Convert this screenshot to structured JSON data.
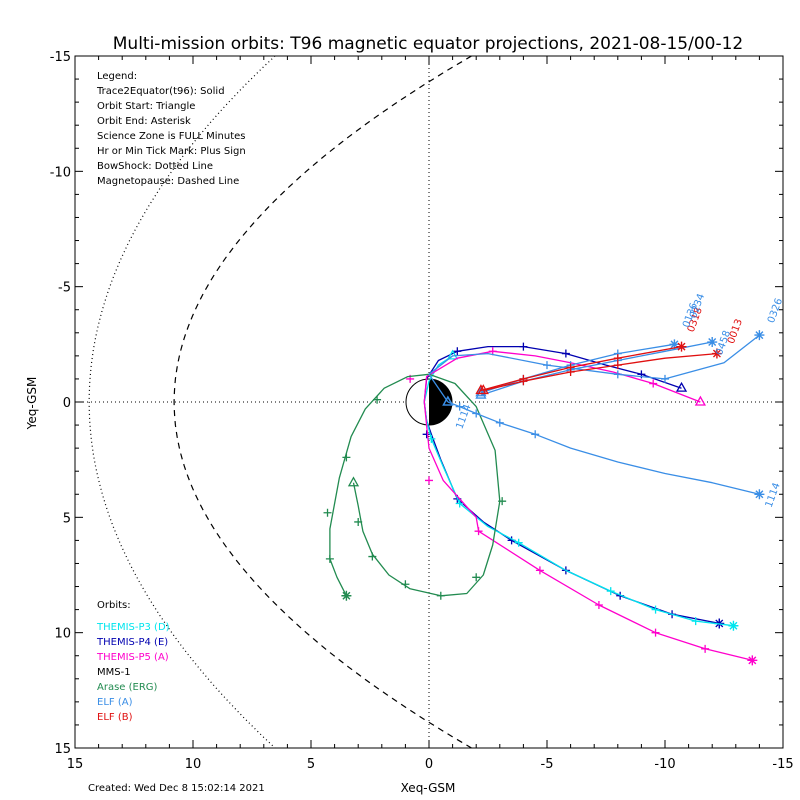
{
  "chart_data": {
    "type": "line",
    "title": "Multi-mission orbits: T96 magnetic equator projections, 2021-08-15/00-12",
    "xlabel": "Xeq-GSM",
    "ylabel": "Yeq-GSM",
    "xlim": [
      15,
      -15
    ],
    "ylim": [
      -15,
      15
    ],
    "xticks": [
      "15",
      "10",
      "5",
      "0",
      "-5",
      "-10",
      "-15"
    ],
    "yticks": [
      "-15",
      "-10",
      "-5",
      "0",
      "5",
      "10",
      "15"
    ],
    "grid": false,
    "legend_text": [
      "Legend:",
      "Trace2Equator(t96): Solid",
      "Orbit Start: Triangle",
      "Orbit End: Asterisk",
      "Science Zone is FULL Minutes",
      "Hr or Min Tick Mark: Plus Sign",
      "BowShock: Dotted Line",
      "Magnetopause: Dashed Line"
    ],
    "orbits_label": "Orbits:",
    "orbits": [
      {
        "name": "THEMIS-P3 (D)",
        "color": "#00e5ee"
      },
      {
        "name": "THEMIS-P4 (E)",
        "color": "#0000b0"
      },
      {
        "name": "THEMIS-P5 (A)",
        "color": "#ff00cc"
      },
      {
        "name": "MMS-1",
        "color": "#000000"
      },
      {
        "name": "Arase (ERG)",
        "color": "#228b50"
      },
      {
        "name": "ELF (A)",
        "color": "#3a8ee6"
      },
      {
        "name": "ELF (B)",
        "color": "#e01010"
      }
    ],
    "series": [
      {
        "name": "THEMIS-P4 (E)",
        "color": "#0000b0",
        "points": [
          [
            -10.7,
            -0.6
          ],
          [
            -9,
            -1.2
          ],
          [
            -7.5,
            -1.6
          ],
          [
            -5.8,
            -2.1
          ],
          [
            -4,
            -2.4
          ],
          [
            -2.5,
            -2.4
          ],
          [
            -1.2,
            -2.2
          ],
          [
            -0.4,
            -1.8
          ],
          [
            0.1,
            -1.0
          ],
          [
            0.2,
            0.0
          ],
          [
            0.1,
            0.8
          ],
          [
            -0.1,
            1.4
          ],
          [
            -0.5,
            2.5
          ],
          [
            -1.2,
            4.2
          ],
          [
            -2.3,
            5.2
          ],
          [
            -3.5,
            6.0
          ],
          [
            -5.8,
            7.3
          ],
          [
            -8.1,
            8.4
          ],
          [
            -10.3,
            9.2
          ],
          [
            -12.3,
            9.6
          ]
        ],
        "ticks": [
          [
            -9,
            -1.2
          ],
          [
            -5.8,
            -2.1
          ],
          [
            -4,
            -2.4
          ],
          [
            -1.2,
            -2.2
          ],
          [
            0.1,
            1.4
          ],
          [
            -1.2,
            4.2
          ],
          [
            -3.5,
            6.0
          ],
          [
            -5.8,
            7.3
          ],
          [
            -8.1,
            8.4
          ],
          [
            -10.3,
            9.2
          ]
        ]
      },
      {
        "name": "THEMIS-P3 (D)",
        "color": "#00e5ee",
        "points": [
          [
            -1.0,
            -2.0
          ],
          [
            -0.4,
            -1.6
          ],
          [
            0.0,
            -0.9
          ],
          [
            0.2,
            0.0
          ],
          [
            0.1,
            0.8
          ],
          [
            -0.1,
            1.6
          ],
          [
            -0.6,
            2.8
          ],
          [
            -1.3,
            4.4
          ],
          [
            -2.5,
            5.4
          ],
          [
            -3.8,
            6.1
          ],
          [
            -5.8,
            7.3
          ],
          [
            -7.7,
            8.2
          ],
          [
            -9.6,
            9.0
          ],
          [
            -11.3,
            9.5
          ],
          [
            -12.9,
            9.7
          ]
        ],
        "ticks": [
          [
            -0.1,
            1.6
          ],
          [
            -1.3,
            4.4
          ],
          [
            -3.8,
            6.1
          ],
          [
            -7.7,
            8.2
          ],
          [
            -9.6,
            9.0
          ],
          [
            -11.3,
            9.5
          ]
        ]
      },
      {
        "name": "THEMIS-P5 (A)",
        "color": "#ff00cc",
        "points": [
          [
            -11.5,
            0.0
          ],
          [
            -9.5,
            -0.8
          ],
          [
            -7.8,
            -1.3
          ],
          [
            -6,
            -1.7
          ],
          [
            -4.5,
            -2.0
          ],
          [
            -2.7,
            -2.2
          ],
          [
            -1.2,
            -1.9
          ],
          [
            0.1,
            -1.1
          ],
          [
            0.2,
            0.0
          ],
          [
            0.1,
            1.0
          ],
          [
            0.0,
            2.0
          ],
          [
            -0.6,
            3.4
          ],
          [
            -2.0,
            5.0
          ],
          [
            -2.1,
            5.6
          ],
          [
            -4.7,
            7.3
          ],
          [
            -7.2,
            8.8
          ],
          [
            -9.6,
            10.0
          ],
          [
            -11.7,
            10.7
          ],
          [
            -13.7,
            11.2
          ]
        ],
        "ticks": [
          [
            -9.5,
            -0.8
          ],
          [
            -2.7,
            -2.2
          ],
          [
            0.8,
            -1.0
          ],
          [
            0.0,
            3.4
          ],
          [
            -2.1,
            5.6
          ],
          [
            -4.7,
            7.3
          ],
          [
            -7.2,
            8.8
          ],
          [
            -9.6,
            10.0
          ],
          [
            -11.7,
            10.7
          ]
        ]
      },
      {
        "name": "Arase (ERG)",
        "color": "#228b50",
        "points": [
          [
            3.2,
            3.5
          ],
          [
            3.0,
            4.5
          ],
          [
            2.8,
            5.6
          ],
          [
            2.4,
            6.6
          ],
          [
            1.7,
            7.5
          ],
          [
            0.8,
            8.1
          ],
          [
            -0.5,
            8.4
          ],
          [
            -1.6,
            8.3
          ],
          [
            -2.3,
            7.5
          ],
          [
            -2.7,
            6.2
          ],
          [
            -3.0,
            4.3
          ],
          [
            -2.8,
            2.1
          ],
          [
            -2.0,
            0.2
          ],
          [
            -1.1,
            -0.8
          ],
          [
            0.0,
            -1.2
          ],
          [
            0.9,
            -1.1
          ],
          [
            1.9,
            -0.6
          ],
          [
            2.7,
            0.3
          ],
          [
            3.3,
            1.5
          ],
          [
            3.8,
            3.3
          ],
          [
            4.2,
            5.5
          ],
          [
            4.2,
            6.8
          ],
          [
            3.9,
            7.6
          ],
          [
            3.5,
            8.4
          ]
        ],
        "ticks": [
          [
            3.0,
            5.2
          ],
          [
            2.4,
            6.7
          ],
          [
            1.0,
            7.9
          ],
          [
            -0.5,
            8.4
          ],
          [
            -2.0,
            7.6
          ],
          [
            -3.1,
            4.3
          ],
          [
            2.2,
            -0.1
          ],
          [
            3.5,
            2.4
          ],
          [
            4.3,
            4.8
          ],
          [
            4.2,
            6.8
          ]
        ]
      },
      {
        "name": "ELF (A) 1114",
        "color": "#3a8ee6",
        "points": [
          [
            -0.8,
            0.0
          ],
          [
            -1.3,
            0.2
          ],
          [
            -2.0,
            0.5
          ],
          [
            -3,
            0.9
          ],
          [
            -4.5,
            1.4
          ],
          [
            -6,
            2.0
          ],
          [
            -8,
            2.6
          ],
          [
            -10,
            3.1
          ],
          [
            -12,
            3.5
          ],
          [
            -14,
            4.0
          ]
        ],
        "ticks": [
          [
            -1.3,
            0.2
          ],
          [
            -2.0,
            0.5
          ],
          [
            -3,
            0.9
          ],
          [
            -4.5,
            1.4
          ]
        ]
      },
      {
        "name": "ELF (A) 0326",
        "color": "#3a8ee6",
        "points": [
          [
            -0.8,
            0.0
          ],
          [
            0.0,
            -1.2
          ],
          [
            -1.0,
            -2.0
          ],
          [
            -2.5,
            -2.1
          ],
          [
            -5,
            -1.6
          ],
          [
            -8,
            -1.2
          ],
          [
            -10,
            -1.0
          ],
          [
            -12.5,
            -1.7
          ],
          [
            -14,
            -2.9
          ]
        ],
        "ticks": [
          [
            -5,
            -1.6
          ],
          [
            -8,
            -1.2
          ],
          [
            -10,
            -1.0
          ]
        ]
      },
      {
        "name": "ELF (A) 0458",
        "color": "#3a8ee6",
        "points": [
          [
            -2.2,
            -0.3
          ],
          [
            -4,
            -0.9
          ],
          [
            -6,
            -1.4
          ],
          [
            -8,
            -1.8
          ],
          [
            -10,
            -2.2
          ],
          [
            -12,
            -2.6
          ]
        ],
        "ticks": [
          [
            -4,
            -0.9
          ],
          [
            -6,
            -1.4
          ],
          [
            -8,
            -1.8
          ]
        ]
      },
      {
        "name": "ELF (A) 0136",
        "color": "#3a8ee6",
        "points": [
          [
            -2.2,
            -0.4
          ],
          [
            -4,
            -1.0
          ],
          [
            -6,
            -1.6
          ],
          [
            -8,
            -2.1
          ],
          [
            -10.4,
            -2.5
          ]
        ],
        "ticks": [
          [
            -4,
            -1.0
          ],
          [
            -6,
            -1.6
          ],
          [
            -8,
            -2.1
          ]
        ]
      },
      {
        "name": "ELF (B) 0318",
        "color": "#e01010",
        "points": [
          [
            -2.2,
            -0.5
          ],
          [
            -4,
            -1.0
          ],
          [
            -6,
            -1.5
          ],
          [
            -8,
            -1.9
          ],
          [
            -10.7,
            -2.4
          ]
        ],
        "ticks": [
          [
            -4,
            -1.0
          ],
          [
            -6,
            -1.5
          ],
          [
            -8,
            -1.9
          ]
        ]
      },
      {
        "name": "ELF (B) 0013",
        "color": "#e01010",
        "points": [
          [
            -2.3,
            -0.5
          ],
          [
            -4,
            -0.9
          ],
          [
            -6,
            -1.3
          ],
          [
            -8,
            -1.6
          ],
          [
            -10,
            -1.9
          ],
          [
            -12.2,
            -2.1
          ]
        ],
        "ticks": [
          [
            -4,
            -0.9
          ],
          [
            -6,
            -1.3
          ],
          [
            -8,
            -1.6
          ]
        ]
      }
    ],
    "labels": [
      {
        "text": "0326",
        "color": "#3a8ee6",
        "x": -14.6,
        "y": -3.4
      },
      {
        "text": "1114",
        "color": "#3a8ee6",
        "x": -14.5,
        "y": 4.6
      },
      {
        "text": "0458",
        "color": "#3a8ee6",
        "x": -12.4,
        "y": -2.0
      },
      {
        "text": "0013",
        "color": "#e01010",
        "x": -12.9,
        "y": -2.5
      },
      {
        "text": "0318",
        "color": "#e01010",
        "x": -11.2,
        "y": -3.0
      },
      {
        "text": "0136",
        "color": "#3a8ee6",
        "x": -11.0,
        "y": -3.2
      },
      {
        "text": "0234",
        "color": "#3a8ee6",
        "x": -11.3,
        "y": -3.6
      },
      {
        "text": "1114",
        "color": "#3a8ee6",
        "x": -1.4,
        "y": 1.2
      }
    ]
  },
  "created": "Created: Wed Dec  8 15:02:14 2021"
}
